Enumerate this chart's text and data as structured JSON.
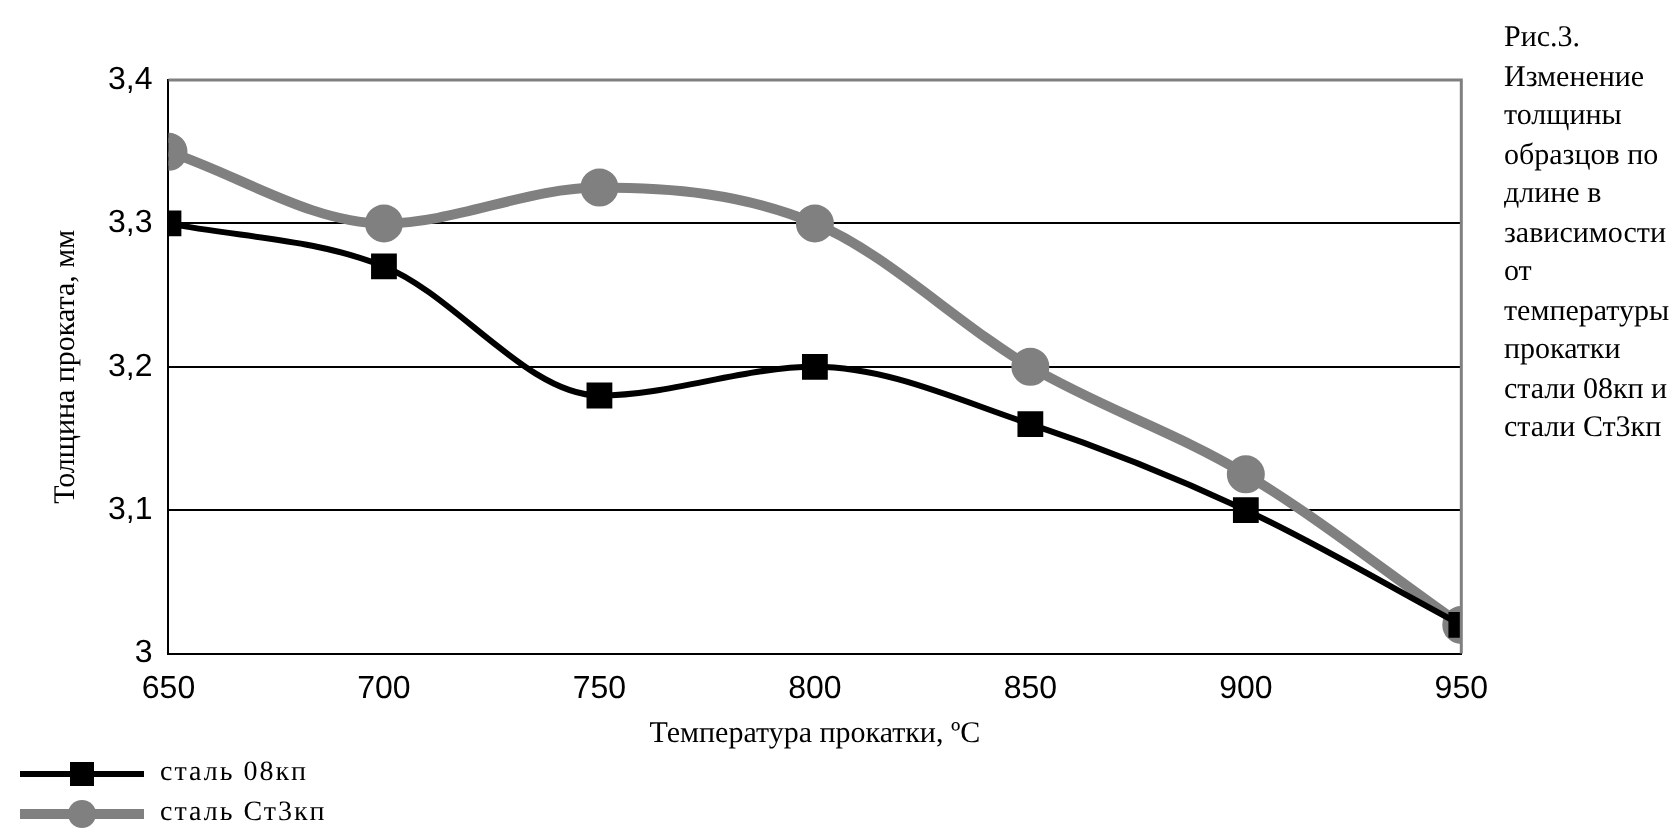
{
  "chart_data": {
    "type": "line",
    "xlabel": "Температура прокатки, ºС",
    "ylabel": "Толщина проката, мм",
    "x": [
      650,
      700,
      750,
      800,
      850,
      900,
      950
    ],
    "xlim": [
      650,
      950
    ],
    "xticks": [
      650,
      700,
      750,
      800,
      850,
      900,
      950
    ],
    "ylim": [
      3,
      3.4
    ],
    "yticks": [
      3,
      {
        "value": 3.1,
        "label": "3,1"
      },
      {
        "value": 3.2,
        "label": "3,2"
      },
      {
        "value": 3.3,
        "label": "3,3"
      },
      {
        "value": 3.4,
        "label": "3,4"
      }
    ],
    "grid": "y",
    "legend": "bottom left",
    "series": [
      {
        "name": "сталь 08кп",
        "color": "#000000",
        "marker": "square",
        "values": [
          3.3,
          3.27,
          3.18,
          3.2,
          3.16,
          3.1,
          3.02
        ]
      },
      {
        "name": "сталь Ст3кп",
        "color": "#808080",
        "marker": "circle",
        "values": [
          3.35,
          3.3,
          3.325,
          3.3,
          3.2,
          3.125,
          3.02
        ]
      }
    ],
    "annotations": [
      "Рис.3. Изменение толщины образцов по длине в зависимости от температуры прокатки стали 08кп и стали Ст3кп"
    ]
  }
}
